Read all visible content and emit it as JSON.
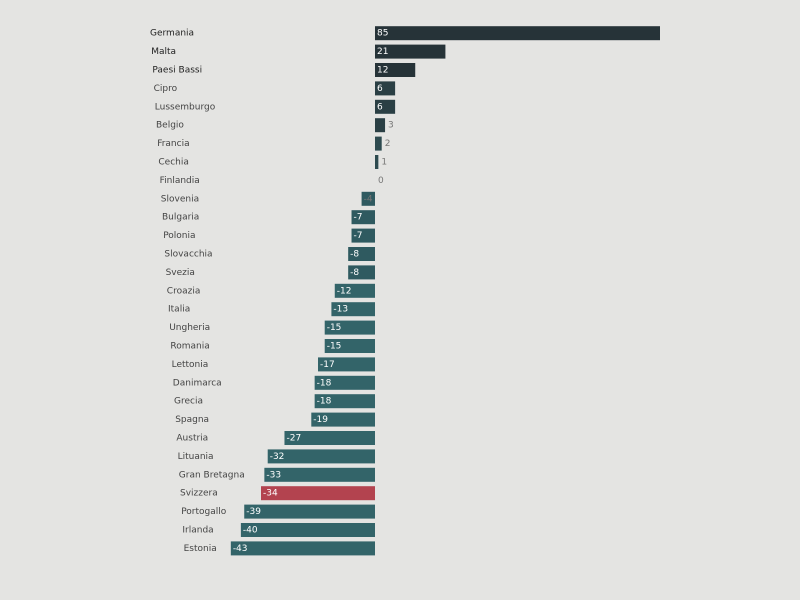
{
  "chart_data": {
    "type": "hbar",
    "categories": [
      "Germania",
      "Malta",
      "Paesi Bassi",
      "Cipro",
      "Lussemburgo",
      "Belgio",
      "Francia",
      "Cechia",
      "Finlandia",
      "Slovenia",
      "Bulgaria",
      "Polonia",
      "Slovacchia",
      "Svezia",
      "Croazia",
      "Italia",
      "Ungheria",
      "Romania",
      "Lettonia",
      "Danimarca",
      "Grecia",
      "Spagna",
      "Austria",
      "Lituania",
      "Gran Bretagna",
      "Svizzera",
      "Portogallo",
      "Irlanda",
      "Estonia"
    ],
    "values": [
      85,
      21,
      12,
      6,
      6,
      3,
      2,
      1,
      0,
      -4,
      -7,
      -7,
      -8,
      -8,
      -12,
      -13,
      -15,
      -15,
      -17,
      -18,
      -18,
      -19,
      -27,
      -32,
      -33,
      -34,
      -39,
      -40,
      -43
    ],
    "colors": [
      "#263338",
      "#263338",
      "#263338",
      "#2a3f44",
      "#2a3f44",
      "#2a3f44",
      "#2d4a4f",
      "#2d4a4f",
      "#2d4a4f",
      "#2f5a60",
      "#2f5a60",
      "#2f5a60",
      "#2f5a60",
      "#2f5a60",
      "#336469",
      "#336469",
      "#336469",
      "#336469",
      "#336469",
      "#336469",
      "#336469",
      "#336469",
      "#336469",
      "#336469",
      "#336469",
      "#b3434f",
      "#336469",
      "#336469",
      "#336469"
    ]
  }
}
